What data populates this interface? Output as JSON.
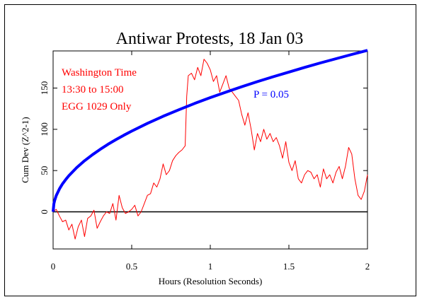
{
  "chart_data": {
    "type": "line",
    "title": "Antiwar Protests, 18 Jan 03",
    "xlabel": "Hours (Resolution Seconds)",
    "ylabel": "Cum Dev (Z^2-1)",
    "xlim": [
      0,
      2
    ],
    "ylim": [
      -45,
      195
    ],
    "x_ticks": [
      0,
      0.5,
      1,
      1.5,
      2
    ],
    "x_tick_labels": [
      "0",
      "0.5",
      "1",
      "1.5",
      "2"
    ],
    "y_ticks": [
      0,
      50,
      100,
      150
    ],
    "y_tick_labels": [
      "0",
      "50",
      "100",
      "150"
    ],
    "grid": false,
    "annotations": {
      "info_lines": [
        "Washington Time",
        "13:30 to 15:00",
        "EGG 1029 Only"
      ],
      "p_label": "P = 0.05"
    },
    "colors": {
      "data": "#ff0000",
      "envelope": "#0000ff",
      "baseline": "#000000"
    },
    "series": [
      {
        "values": [
          [
            0,
            0
          ],
          [
            0.02,
            3
          ],
          [
            0.04,
            -5
          ],
          [
            0.06,
            -12
          ],
          [
            0.08,
            -10
          ],
          [
            0.1,
            -22
          ],
          [
            0.12,
            -15
          ],
          [
            0.14,
            -33
          ],
          [
            0.16,
            -18
          ],
          [
            0.18,
            -10
          ],
          [
            0.2,
            -30
          ],
          [
            0.22,
            -8
          ],
          [
            0.24,
            -5
          ],
          [
            0.26,
            2
          ],
          [
            0.28,
            -20
          ],
          [
            0.3,
            -12
          ],
          [
            0.32,
            -5
          ],
          [
            0.34,
            0
          ],
          [
            0.36,
            -2
          ],
          [
            0.38,
            10
          ],
          [
            0.4,
            -10
          ],
          [
            0.42,
            20
          ],
          [
            0.44,
            5
          ],
          [
            0.46,
            -2
          ],
          [
            0.48,
            0
          ],
          [
            0.5,
            3
          ],
          [
            0.52,
            8
          ],
          [
            0.54,
            -5
          ],
          [
            0.56,
            0
          ],
          [
            0.58,
            10
          ],
          [
            0.6,
            20
          ],
          [
            0.62,
            22
          ],
          [
            0.64,
            35
          ],
          [
            0.66,
            30
          ],
          [
            0.68,
            40
          ],
          [
            0.7,
            58
          ],
          [
            0.72,
            45
          ],
          [
            0.74,
            50
          ],
          [
            0.76,
            62
          ],
          [
            0.78,
            68
          ],
          [
            0.8,
            72
          ],
          [
            0.82,
            75
          ],
          [
            0.84,
            80
          ],
          [
            0.85,
            140
          ],
          [
            0.86,
            165
          ],
          [
            0.88,
            168
          ],
          [
            0.9,
            160
          ],
          [
            0.92,
            175
          ],
          [
            0.94,
            165
          ],
          [
            0.96,
            185
          ],
          [
            0.98,
            180
          ],
          [
            1.0,
            172
          ],
          [
            1.02,
            158
          ],
          [
            1.04,
            165
          ],
          [
            1.06,
            145
          ],
          [
            1.08,
            155
          ],
          [
            1.1,
            165
          ],
          [
            1.12,
            150
          ],
          [
            1.14,
            145
          ],
          [
            1.16,
            140
          ],
          [
            1.18,
            135
          ],
          [
            1.2,
            118
          ],
          [
            1.22,
            105
          ],
          [
            1.24,
            120
          ],
          [
            1.26,
            100
          ],
          [
            1.28,
            75
          ],
          [
            1.3,
            95
          ],
          [
            1.32,
            85
          ],
          [
            1.34,
            100
          ],
          [
            1.36,
            88
          ],
          [
            1.38,
            95
          ],
          [
            1.4,
            85
          ],
          [
            1.42,
            90
          ],
          [
            1.44,
            80
          ],
          [
            1.46,
            65
          ],
          [
            1.48,
            85
          ],
          [
            1.5,
            60
          ],
          [
            1.52,
            50
          ],
          [
            1.54,
            62
          ],
          [
            1.56,
            40
          ],
          [
            1.58,
            35
          ],
          [
            1.6,
            45
          ],
          [
            1.62,
            50
          ],
          [
            1.64,
            48
          ],
          [
            1.66,
            40
          ],
          [
            1.68,
            45
          ],
          [
            1.7,
            30
          ],
          [
            1.72,
            52
          ],
          [
            1.74,
            40
          ],
          [
            1.76,
            45
          ],
          [
            1.78,
            35
          ],
          [
            1.8,
            48
          ],
          [
            1.82,
            55
          ],
          [
            1.84,
            40
          ],
          [
            1.86,
            55
          ],
          [
            1.88,
            78
          ],
          [
            1.9,
            70
          ],
          [
            1.92,
            40
          ],
          [
            1.94,
            20
          ],
          [
            1.96,
            15
          ],
          [
            1.98,
            25
          ],
          [
            2.0,
            45
          ]
        ]
      },
      {
        "values": [
          [
            0,
            0
          ],
          [
            0.005,
            9.8
          ],
          [
            0.01,
            13.8
          ],
          [
            0.02,
            19.6
          ],
          [
            0.04,
            27.7
          ],
          [
            0.06,
            33.9
          ],
          [
            0.08,
            39.1
          ],
          [
            0.1,
            43.7
          ],
          [
            0.15,
            53.6
          ],
          [
            0.2,
            61.9
          ],
          [
            0.25,
            69.2
          ],
          [
            0.3,
            75.8
          ],
          [
            0.35,
            81.9
          ],
          [
            0.4,
            87.5
          ],
          [
            0.45,
            92.8
          ],
          [
            0.5,
            97.8
          ],
          [
            0.6,
            107.2
          ],
          [
            0.7,
            115.8
          ],
          [
            0.8,
            123.7
          ],
          [
            0.9,
            131.3
          ],
          [
            1.0,
            138.4
          ],
          [
            1.1,
            145.1
          ],
          [
            1.2,
            151.6
          ],
          [
            1.3,
            157.8
          ],
          [
            1.4,
            163.7
          ],
          [
            1.5,
            169.4
          ],
          [
            1.6,
            175.0
          ],
          [
            1.7,
            180.4
          ],
          [
            1.8,
            185.6
          ],
          [
            1.9,
            190.7
          ],
          [
            2.0,
            195.7
          ]
        ]
      }
    ]
  }
}
